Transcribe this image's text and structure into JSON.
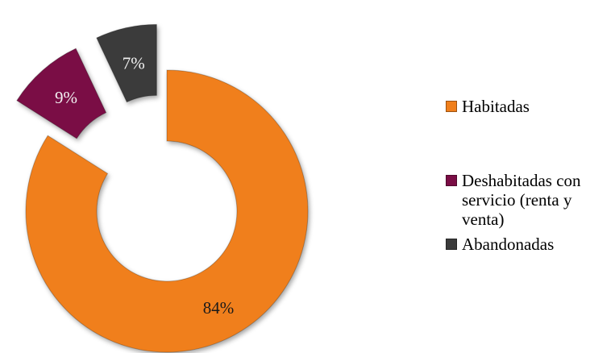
{
  "chart_data": {
    "type": "donut",
    "title": "",
    "exploded": true,
    "legend_position": "right",
    "categories": [
      "Habitadas",
      "Deshabitadas con servicio (renta y venta)",
      "Abandonadas"
    ],
    "values": [
      84,
      9,
      7
    ],
    "labels": [
      "84%",
      "9%",
      "7%"
    ],
    "colors": [
      "#f07f1b",
      "#7a0d45",
      "#3b3b3b"
    ],
    "label_colors": [
      "#1a1a1a",
      "#f2f2f2",
      "#f2f2f2"
    ]
  }
}
